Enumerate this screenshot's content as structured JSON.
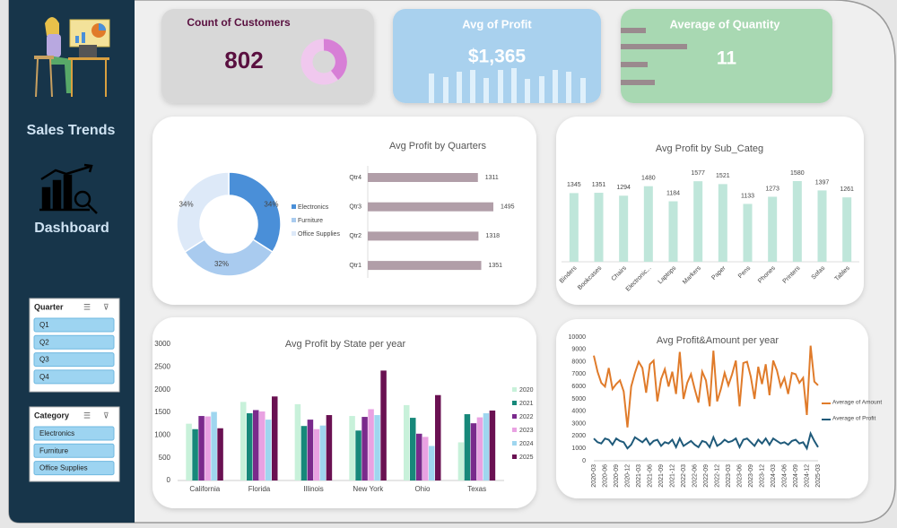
{
  "sidebar": {
    "title": "Sales Trends",
    "subtitle": "Dashboard"
  },
  "slicers": [
    {
      "title": "Quarter",
      "items": [
        "Q1",
        "Q2",
        "Q3",
        "Q4"
      ]
    },
    {
      "title": "Category",
      "items": [
        "Electronics",
        "Furniture",
        "Office Supplies"
      ]
    }
  ],
  "kpis": [
    {
      "label": "Count of Customers",
      "value": "802"
    },
    {
      "label": "Avg of Profit",
      "value": "$1,365"
    },
    {
      "label": "Average of Quantity",
      "value": "11"
    }
  ],
  "chart_data": [
    {
      "type": "pie",
      "categories": [
        "Electronics",
        "Furniture",
        "Office Supplies"
      ],
      "values": [
        34,
        32,
        34
      ],
      "value_labels": [
        "34%",
        "32%",
        "34%"
      ],
      "colors": [
        "#4a8fd8",
        "#a9cbef",
        "#dde9f8"
      ],
      "donut": true
    },
    {
      "type": "hbar",
      "title": "Avg Profit by Quarters",
      "categories": [
        "Qtr4",
        "Qtr3",
        "Qtr2",
        "Qtr1"
      ],
      "values": [
        1311,
        1495,
        1318,
        1351
      ],
      "color": "#b19ea8"
    },
    {
      "type": "bar",
      "title": "Avg Profit by Sub_Categ",
      "categories": [
        "Binders",
        "Bookcases",
        "Chairs",
        "Electronic...",
        "Laptops",
        "Markers",
        "Paper",
        "Pens",
        "Phones",
        "Printers",
        "Sofas",
        "Tables"
      ],
      "values": [
        1345,
        1351,
        1294,
        1480,
        1184,
        1577,
        1521,
        1133,
        1273,
        1580,
        1397,
        1261
      ],
      "color": "#bfe6da"
    },
    {
      "type": "grouped_bar",
      "title": "Avg Profit by State per year",
      "categories": [
        "California",
        "Florida",
        "Illinois",
        "New York",
        "Ohio",
        "Texas"
      ],
      "series": [
        {
          "name": "2020",
          "color": "#c8f1da",
          "values": [
            1250,
            1730,
            1680,
            1420,
            1660,
            840
          ]
        },
        {
          "name": "2021",
          "color": "#17887a",
          "values": [
            1130,
            1480,
            1200,
            1100,
            1380,
            1460
          ]
        },
        {
          "name": "2022",
          "color": "#7a2a8c",
          "values": [
            1420,
            1550,
            1340,
            1400,
            1030,
            1260
          ]
        },
        {
          "name": "2023",
          "color": "#e9a2e2",
          "values": [
            1410,
            1520,
            1130,
            1570,
            960,
            1390
          ]
        },
        {
          "name": "2024",
          "color": "#9fd6ef",
          "values": [
            1510,
            1340,
            1210,
            1440,
            760,
            1480
          ]
        },
        {
          "name": "2025",
          "color": "#6a1152",
          "values": [
            1150,
            1850,
            1440,
            2420,
            1880,
            1540
          ]
        }
      ],
      "ylim": [
        0,
        3000
      ],
      "yticks": [
        0,
        500,
        1000,
        1500,
        2000,
        2500,
        3000
      ]
    },
    {
      "type": "line",
      "title": "Avg Profit&Amount per year",
      "x": [
        "2020-03",
        null,
        null,
        "2020-06",
        null,
        null,
        "2020-09",
        null,
        null,
        "2020-12",
        null,
        null,
        "2021-03",
        null,
        null,
        "2021-06",
        null,
        null,
        "2021-09",
        null,
        null,
        "2021-12",
        null,
        null,
        "2022-03",
        null,
        null,
        "2022-06",
        null,
        null,
        "2022-09",
        null,
        null,
        "2022-12",
        null,
        null,
        "2023-03",
        null,
        null,
        "2023-06",
        null,
        null,
        "2023-09",
        null,
        null,
        "2023-12",
        null,
        null,
        "2024-03",
        null,
        null,
        "2024-06",
        null,
        null,
        "2024-09",
        null,
        null,
        "2024-12",
        null,
        null,
        "2025-03"
      ],
      "series": [
        {
          "name": "Average of Amount",
          "color": "#e07b2a",
          "values": [
            8500,
            7200,
            6300,
            6000,
            7500,
            5800,
            6200,
            6500,
            5600,
            2700,
            6000,
            7100,
            8000,
            7500,
            5500,
            7800,
            8100,
            4800,
            6600,
            7400,
            6000,
            7200,
            5400,
            8800,
            5000,
            6300,
            7000,
            5800,
            4700,
            7200,
            6500,
            4400,
            8900,
            4800,
            5800,
            7100,
            6100,
            7000,
            8100,
            4400,
            7900,
            8000,
            6800,
            5000,
            7600,
            6200,
            7800,
            5300,
            8100,
            7300,
            6000,
            6700,
            5400,
            7100,
            7000,
            6300,
            6700,
            3700,
            9300,
            6400,
            6100
          ]
        },
        {
          "name": "Average of Profit",
          "color": "#1f5a7a",
          "values": [
            1800,
            1500,
            1400,
            1800,
            1700,
            1300,
            1800,
            1600,
            1500,
            1000,
            1300,
            1900,
            1700,
            1500,
            1800,
            1300,
            1600,
            1700,
            1200,
            1500,
            1400,
            1700,
            1100,
            1800,
            1200,
            1400,
            1600,
            1300,
            1100,
            1600,
            1500,
            1100,
            1900,
            1200,
            1400,
            1700,
            1500,
            1600,
            1800,
            1100,
            1700,
            1800,
            1500,
            1200,
            1700,
            1400,
            1800,
            1300,
            1800,
            1600,
            1400,
            1500,
            1300,
            1600,
            1700,
            1400,
            1500,
            1000,
            2200,
            1600,
            1100
          ]
        }
      ],
      "ylim": [
        0,
        10000
      ],
      "yticks": [
        0,
        1000,
        2000,
        3000,
        4000,
        5000,
        6000,
        7000,
        8000,
        9000,
        10000
      ]
    }
  ]
}
